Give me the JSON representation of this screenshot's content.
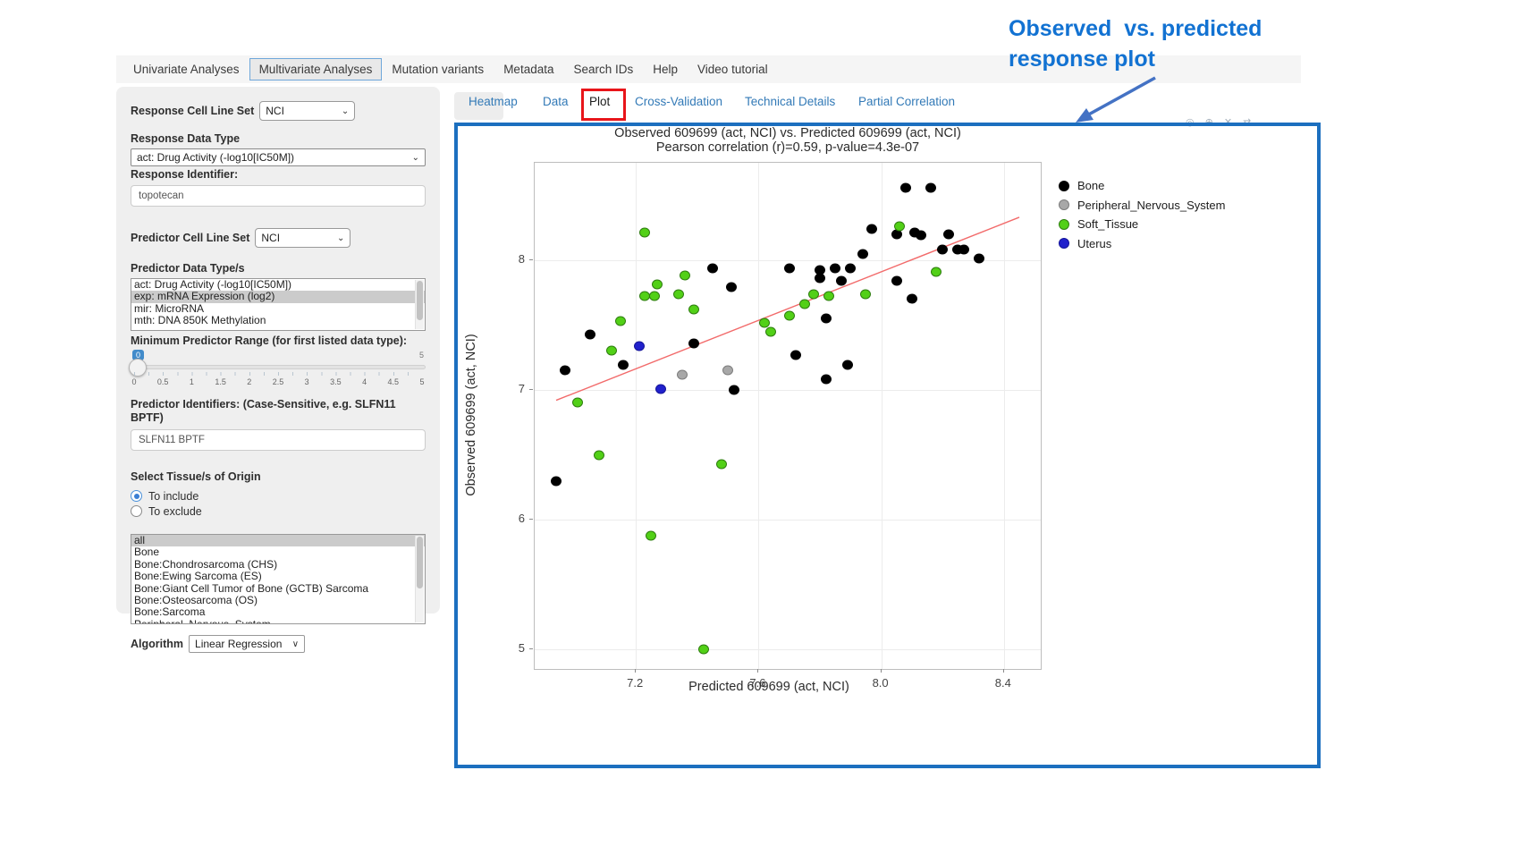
{
  "nav": {
    "items": [
      {
        "label": "Univariate Analyses",
        "active": false
      },
      {
        "label": "Multivariate Analyses",
        "active": true
      },
      {
        "label": "Mutation variants",
        "active": false
      },
      {
        "label": "Metadata",
        "active": false
      },
      {
        "label": "Search IDs",
        "active": false
      },
      {
        "label": "Help",
        "active": false
      },
      {
        "label": "Video tutorial",
        "active": false
      }
    ]
  },
  "annotation": {
    "line1": "Observed  vs. predicted",
    "line2": "response plot",
    "color": "#1272d2",
    "arrow_color": "#4472c4"
  },
  "subtabs": {
    "items": [
      {
        "label": "Heatmap",
        "active": false
      },
      {
        "label": "Data",
        "active": false
      },
      {
        "label": "Plot",
        "active": true,
        "highlighted": true
      },
      {
        "label": "Cross-Validation",
        "active": false
      },
      {
        "label": "Technical Details",
        "active": false
      },
      {
        "label": "Partial Correlation",
        "active": false
      }
    ],
    "highlight_color": "#e8151a",
    "link_color": "#337ab7"
  },
  "sidebar": {
    "response_cell_line_set": {
      "label": "Response Cell Line Set",
      "value": "NCI"
    },
    "response_data_type": {
      "label": "Response Data Type",
      "value": "act: Drug Activity (-log10[IC50M])"
    },
    "response_identifier": {
      "label": "Response Identifier:",
      "value": "topotecan"
    },
    "predictor_cell_line_set": {
      "label": "Predictor Cell Line Set",
      "value": "NCI"
    },
    "predictor_data_types": {
      "label": "Predictor Data Type/s",
      "options": [
        "act: Drug Activity (-log10[IC50M])",
        "exp: mRNA Expression (log2)",
        "mir: MicroRNA",
        "mth: DNA 850K Methylation"
      ],
      "selected": "exp: mRNA Expression (log2)"
    },
    "min_predictor_range": {
      "label": "Minimum Predictor Range (for first listed data type):",
      "value": "0",
      "max_label": "5",
      "ticks": [
        "0",
        "0.5",
        "1",
        "1.5",
        "2",
        "2.5",
        "3",
        "3.5",
        "4",
        "4.5",
        "5"
      ]
    },
    "predictor_identifiers": {
      "label": "Predictor Identifiers: (Case-Sensitive, e.g. SLFN11 BPTF)",
      "value": "SLFN11 BPTF"
    },
    "tissue_origin": {
      "label": "Select Tissue/s of Origin",
      "radios": [
        {
          "label": "To include",
          "selected": true
        },
        {
          "label": "To exclude",
          "selected": false
        }
      ],
      "options": [
        "all",
        "Bone",
        "Bone:Chondrosarcoma (CHS)",
        "Bone:Ewing Sarcoma (ES)",
        "Bone:Giant Cell Tumor of Bone (GCTB) Sarcoma",
        "Bone:Osteosarcoma (OS)",
        "Bone:Sarcoma",
        "Peripheral_Nervous_System"
      ],
      "selected": "all"
    },
    "algorithm": {
      "label": "Algorithm",
      "value": "Linear Regression"
    }
  },
  "modebar": {
    "icons": [
      {
        "name": "camera-icon",
        "glyph": "◎"
      },
      {
        "name": "zoom-icon",
        "glyph": "⊕"
      },
      {
        "name": "close-icon",
        "glyph": "✕"
      },
      {
        "name": "pan-icon",
        "glyph": "⇄"
      }
    ]
  },
  "chart_data": {
    "type": "scatter",
    "title": "Observed 609699 (act, NCI) vs. Predicted 609699 (act, NCI)",
    "subtitle": "Pearson correlation (r)=0.59, p-value=4.3e-07",
    "xlabel": "Predicted 609699 (act, NCI)",
    "ylabel": "Observed 609699 (act, NCI)",
    "xlim": [
      6.87,
      8.52
    ],
    "ylim": [
      4.85,
      8.75
    ],
    "x_ticks": [
      7.2,
      7.6,
      8.0,
      8.4
    ],
    "y_ticks": [
      5,
      6,
      7,
      8
    ],
    "grid": true,
    "legend_position": "right",
    "regression_line": {
      "color": "#f26b6b",
      "x1": 6.94,
      "y1": 6.92,
      "x2": 8.45,
      "y2": 8.33
    },
    "series": [
      {
        "name": "Bone",
        "color": "#000000",
        "edge": "#000000",
        "points": [
          [
            7.45,
            7.94
          ],
          [
            7.51,
            7.79
          ],
          [
            7.05,
            7.43
          ],
          [
            7.39,
            7.36
          ],
          [
            7.16,
            7.19
          ],
          [
            6.97,
            7.15
          ],
          [
            8.08,
            8.56
          ],
          [
            8.16,
            8.56
          ],
          [
            7.97,
            8.24
          ],
          [
            8.05,
            8.2
          ],
          [
            8.11,
            8.21
          ],
          [
            8.13,
            8.19
          ],
          [
            8.22,
            8.2
          ],
          [
            7.7,
            7.94
          ],
          [
            7.9,
            7.94
          ],
          [
            7.94,
            8.05
          ],
          [
            8.2,
            8.08
          ],
          [
            8.25,
            8.08
          ],
          [
            8.27,
            8.08
          ],
          [
            8.32,
            8.01
          ],
          [
            7.8,
            7.92
          ],
          [
            7.85,
            7.94
          ],
          [
            7.8,
            7.86
          ],
          [
            7.87,
            7.84
          ],
          [
            8.05,
            7.84
          ],
          [
            8.1,
            7.7
          ],
          [
            7.82,
            7.55
          ],
          [
            7.72,
            7.27
          ],
          [
            7.89,
            7.19
          ],
          [
            7.82,
            7.08
          ],
          [
            7.52,
            7.0
          ],
          [
            6.94,
            6.3
          ]
        ]
      },
      {
        "name": "Peripheral_Nervous_System",
        "color": "#a8a8a8",
        "edge": "#7d7d7d",
        "points": [
          [
            7.35,
            7.12
          ],
          [
            7.5,
            7.15
          ]
        ]
      },
      {
        "name": "Soft_Tissue",
        "color": "#52d017",
        "edge": "#2e7d0f",
        "points": [
          [
            7.23,
            8.21
          ],
          [
            7.27,
            7.81
          ],
          [
            7.23,
            7.72
          ],
          [
            7.26,
            7.72
          ],
          [
            7.34,
            7.74
          ],
          [
            7.36,
            7.88
          ],
          [
            7.39,
            7.62
          ],
          [
            7.15,
            7.53
          ],
          [
            7.12,
            7.3
          ],
          [
            8.06,
            8.26
          ],
          [
            8.18,
            7.91
          ],
          [
            7.78,
            7.74
          ],
          [
            7.83,
            7.72
          ],
          [
            7.95,
            7.74
          ],
          [
            7.75,
            7.66
          ],
          [
            7.7,
            7.57
          ],
          [
            7.62,
            7.52
          ],
          [
            7.64,
            7.45
          ],
          [
            7.01,
            6.9
          ],
          [
            7.08,
            6.5
          ],
          [
            7.48,
            6.43
          ],
          [
            7.25,
            5.88
          ],
          [
            7.42,
            5.0
          ]
        ]
      },
      {
        "name": "Uterus",
        "color": "#2121cc",
        "edge": "#15159a",
        "points": [
          [
            7.21,
            7.34
          ],
          [
            7.28,
            7.01
          ]
        ]
      }
    ]
  },
  "colors": {
    "accent_blue": "#1c6fbf",
    "annotation_blue": "#1272d2",
    "highlight_red": "#e8151a",
    "link_blue": "#337ab7"
  }
}
